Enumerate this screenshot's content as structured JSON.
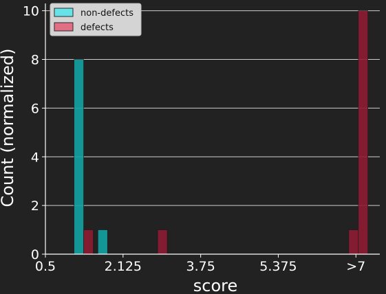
{
  "chart_data": {
    "type": "bar",
    "xlabel": "score",
    "ylabel": "Count (normalized)",
    "xlim": [
      0.5,
      7.5
    ],
    "ylim": [
      0,
      10.3
    ],
    "x_ticks": [
      {
        "value": 0.5,
        "label": "0.5"
      },
      {
        "value": 2.125,
        "label": "2.125"
      },
      {
        "value": 3.75,
        "label": "3.75"
      },
      {
        "value": 5.375,
        "label": "5.375"
      },
      {
        "value": 7.0,
        "label": ">7"
      }
    ],
    "y_ticks": [
      0,
      2,
      4,
      6,
      8,
      10
    ],
    "grid": "horizontal",
    "legend_position": "top-left",
    "series": [
      {
        "name": "non-defects",
        "color": "#13a3a3",
        "legend_color": "#65e3e8",
        "bins": [
          {
            "start": 1.1,
            "end": 1.3,
            "value": 8
          },
          {
            "start": 1.6,
            "end": 1.8,
            "value": 1
          }
        ]
      },
      {
        "name": "defects",
        "color": "#8e1b33",
        "legend_color": "#e06e85",
        "bins": [
          {
            "start": 1.3,
            "end": 1.5,
            "value": 1
          },
          {
            "start": 2.85,
            "end": 3.05,
            "value": 1
          },
          {
            "start": 6.85,
            "end": 7.05,
            "value": 1
          },
          {
            "start": 7.05,
            "end": 7.25,
            "value": 10
          }
        ]
      }
    ]
  }
}
